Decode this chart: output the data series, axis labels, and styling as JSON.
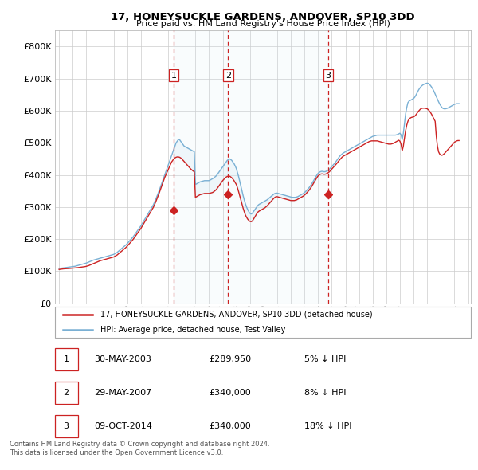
{
  "title": "17, HONEYSUCKLE GARDENS, ANDOVER, SP10 3DD",
  "subtitle": "Price paid vs. HM Land Registry's House Price Index (HPI)",
  "ylim": [
    0,
    850000
  ],
  "yticks": [
    0,
    100000,
    200000,
    300000,
    400000,
    500000,
    600000,
    700000,
    800000
  ],
  "legend_line1": "17, HONEYSUCKLE GARDENS, ANDOVER, SP10 3DD (detached house)",
  "legend_line2": "HPI: Average price, detached house, Test Valley",
  "line_color_red": "#cc2222",
  "line_color_blue": "#7ab0d4",
  "shade_color": "#d0e8f5",
  "vline_color": "#cc2222",
  "footer": "Contains HM Land Registry data © Crown copyright and database right 2024.\nThis data is licensed under the Open Government Licence v3.0.",
  "transactions": [
    {
      "num": 1,
      "date": "30-MAY-2003",
      "price": "£289,950",
      "pct": "5% ↓ HPI",
      "year": 2003.4,
      "price_val": 289950
    },
    {
      "num": 2,
      "date": "29-MAY-2007",
      "price": "£340,000",
      "pct": "8% ↓ HPI",
      "year": 2007.4,
      "price_val": 340000
    },
    {
      "num": 3,
      "date": "09-OCT-2014",
      "price": "£340,000",
      "pct": "18% ↓ HPI",
      "year": 2014.75,
      "price_val": 340000
    }
  ],
  "hpi_x": [
    1995.0,
    1995.083,
    1995.167,
    1995.25,
    1995.333,
    1995.417,
    1995.5,
    1995.583,
    1995.667,
    1995.75,
    1995.833,
    1995.917,
    1996.0,
    1996.083,
    1996.167,
    1996.25,
    1996.333,
    1996.417,
    1996.5,
    1996.583,
    1996.667,
    1996.75,
    1996.833,
    1996.917,
    1997.0,
    1997.083,
    1997.167,
    1997.25,
    1997.333,
    1997.417,
    1997.5,
    1997.583,
    1997.667,
    1997.75,
    1997.833,
    1997.917,
    1998.0,
    1998.083,
    1998.167,
    1998.25,
    1998.333,
    1998.417,
    1998.5,
    1998.583,
    1998.667,
    1998.75,
    1998.833,
    1998.917,
    1999.0,
    1999.083,
    1999.167,
    1999.25,
    1999.333,
    1999.417,
    1999.5,
    1999.583,
    1999.667,
    1999.75,
    1999.833,
    1999.917,
    2000.0,
    2000.083,
    2000.167,
    2000.25,
    2000.333,
    2000.417,
    2000.5,
    2000.583,
    2000.667,
    2000.75,
    2000.833,
    2000.917,
    2001.0,
    2001.083,
    2001.167,
    2001.25,
    2001.333,
    2001.417,
    2001.5,
    2001.583,
    2001.667,
    2001.75,
    2001.833,
    2001.917,
    2002.0,
    2002.083,
    2002.167,
    2002.25,
    2002.333,
    2002.417,
    2002.5,
    2002.583,
    2002.667,
    2002.75,
    2002.833,
    2002.917,
    2003.0,
    2003.083,
    2003.167,
    2003.25,
    2003.333,
    2003.417,
    2003.5,
    2003.583,
    2003.667,
    2003.75,
    2003.833,
    2003.917,
    2004.0,
    2004.083,
    2004.167,
    2004.25,
    2004.333,
    2004.417,
    2004.5,
    2004.583,
    2004.667,
    2004.75,
    2004.833,
    2004.917,
    2005.0,
    2005.083,
    2005.167,
    2005.25,
    2005.333,
    2005.417,
    2005.5,
    2005.583,
    2005.667,
    2005.75,
    2005.833,
    2005.917,
    2006.0,
    2006.083,
    2006.167,
    2006.25,
    2006.333,
    2006.417,
    2006.5,
    2006.583,
    2006.667,
    2006.75,
    2006.833,
    2006.917,
    2007.0,
    2007.083,
    2007.167,
    2007.25,
    2007.333,
    2007.417,
    2007.5,
    2007.583,
    2007.667,
    2007.75,
    2007.833,
    2007.917,
    2008.0,
    2008.083,
    2008.167,
    2008.25,
    2008.333,
    2008.417,
    2008.5,
    2008.583,
    2008.667,
    2008.75,
    2008.833,
    2008.917,
    2009.0,
    2009.083,
    2009.167,
    2009.25,
    2009.333,
    2009.417,
    2009.5,
    2009.583,
    2009.667,
    2009.75,
    2009.833,
    2009.917,
    2010.0,
    2010.083,
    2010.167,
    2010.25,
    2010.333,
    2010.417,
    2010.5,
    2010.583,
    2010.667,
    2010.75,
    2010.833,
    2010.917,
    2011.0,
    2011.083,
    2011.167,
    2011.25,
    2011.333,
    2011.417,
    2011.5,
    2011.583,
    2011.667,
    2011.75,
    2011.833,
    2011.917,
    2012.0,
    2012.083,
    2012.167,
    2012.25,
    2012.333,
    2012.417,
    2012.5,
    2012.583,
    2012.667,
    2012.75,
    2012.833,
    2012.917,
    2013.0,
    2013.083,
    2013.167,
    2013.25,
    2013.333,
    2013.417,
    2013.5,
    2013.583,
    2013.667,
    2013.75,
    2013.833,
    2013.917,
    2014.0,
    2014.083,
    2014.167,
    2014.25,
    2014.333,
    2014.417,
    2014.5,
    2014.583,
    2014.667,
    2014.75,
    2014.833,
    2014.917,
    2015.0,
    2015.083,
    2015.167,
    2015.25,
    2015.333,
    2015.417,
    2015.5,
    2015.583,
    2015.667,
    2015.75,
    2015.833,
    2015.917,
    2016.0,
    2016.083,
    2016.167,
    2016.25,
    2016.333,
    2016.417,
    2016.5,
    2016.583,
    2016.667,
    2016.75,
    2016.833,
    2016.917,
    2017.0,
    2017.083,
    2017.167,
    2017.25,
    2017.333,
    2017.417,
    2017.5,
    2017.583,
    2017.667,
    2017.75,
    2017.833,
    2017.917,
    2018.0,
    2018.083,
    2018.167,
    2018.25,
    2018.333,
    2018.417,
    2018.5,
    2018.583,
    2018.667,
    2018.75,
    2018.833,
    2018.917,
    2019.0,
    2019.083,
    2019.167,
    2019.25,
    2019.333,
    2019.417,
    2019.5,
    2019.583,
    2019.667,
    2019.75,
    2019.833,
    2019.917,
    2020.0,
    2020.083,
    2020.167,
    2020.25,
    2020.333,
    2020.417,
    2020.5,
    2020.583,
    2020.667,
    2020.75,
    2020.833,
    2020.917,
    2021.0,
    2021.083,
    2021.167,
    2021.25,
    2021.333,
    2021.417,
    2021.5,
    2021.583,
    2021.667,
    2021.75,
    2021.833,
    2021.917,
    2022.0,
    2022.083,
    2022.167,
    2022.25,
    2022.333,
    2022.417,
    2022.5,
    2022.583,
    2022.667,
    2022.75,
    2022.833,
    2022.917,
    2023.0,
    2023.083,
    2023.167,
    2023.25,
    2023.333,
    2023.417,
    2023.5,
    2023.583,
    2023.667,
    2023.75,
    2023.833,
    2023.917,
    2024.0,
    2024.083,
    2024.167,
    2024.25,
    2024.333
  ],
  "hpi_y": [
    108000,
    108500,
    109000,
    109500,
    110000,
    110500,
    111000,
    111500,
    112000,
    112500,
    113000,
    113500,
    114000,
    114500,
    115000,
    116000,
    117000,
    118000,
    119000,
    120000,
    121000,
    122000,
    123000,
    124000,
    125000,
    126500,
    128000,
    129500,
    131000,
    132500,
    134000,
    135000,
    136000,
    137000,
    138000,
    139000,
    140000,
    141000,
    142000,
    143000,
    144000,
    145000,
    146000,
    147000,
    148000,
    149000,
    150000,
    151000,
    152000,
    154000,
    156000,
    158000,
    161000,
    164000,
    167000,
    170000,
    173000,
    176000,
    179000,
    182000,
    186000,
    190000,
    194000,
    198000,
    202000,
    206000,
    211000,
    216000,
    221000,
    226000,
    231000,
    236000,
    241000,
    247000,
    253000,
    259000,
    265000,
    271000,
    277000,
    283000,
    289000,
    295000,
    301000,
    307000,
    315000,
    323000,
    332000,
    341000,
    350000,
    360000,
    370000,
    380000,
    390000,
    400000,
    410000,
    420000,
    430000,
    440000,
    450000,
    460000,
    470000,
    480000,
    490000,
    500000,
    505000,
    510000,
    510000,
    505000,
    500000,
    495000,
    490000,
    488000,
    486000,
    484000,
    482000,
    480000,
    478000,
    476000,
    474000,
    472000,
    370000,
    372000,
    374000,
    376000,
    378000,
    379000,
    380000,
    381000,
    382000,
    382000,
    382000,
    382000,
    382000,
    384000,
    386000,
    388000,
    390000,
    393000,
    396000,
    400000,
    405000,
    410000,
    415000,
    420000,
    425000,
    430000,
    435000,
    440000,
    445000,
    448000,
    450000,
    448000,
    445000,
    440000,
    435000,
    428000,
    420000,
    408000,
    395000,
    380000,
    365000,
    350000,
    335000,
    322000,
    310000,
    300000,
    292000,
    285000,
    280000,
    278000,
    280000,
    285000,
    290000,
    295000,
    300000,
    305000,
    308000,
    310000,
    312000,
    314000,
    316000,
    318000,
    320000,
    322000,
    325000,
    328000,
    331000,
    334000,
    337000,
    340000,
    342000,
    343000,
    343000,
    342000,
    341000,
    340000,
    339000,
    338000,
    337000,
    336000,
    335000,
    334000,
    333000,
    332000,
    331000,
    330000,
    330000,
    330000,
    330000,
    331000,
    332000,
    334000,
    336000,
    338000,
    340000,
    342000,
    345000,
    348000,
    352000,
    356000,
    360000,
    365000,
    370000,
    376000,
    382000,
    388000,
    394000,
    400000,
    405000,
    408000,
    410000,
    411000,
    411000,
    410000,
    410000,
    411000,
    413000,
    415000,
    418000,
    422000,
    426000,
    430000,
    434000,
    438000,
    443000,
    448000,
    453000,
    458000,
    462000,
    465000,
    468000,
    470000,
    472000,
    474000,
    476000,
    478000,
    480000,
    482000,
    484000,
    486000,
    488000,
    490000,
    492000,
    494000,
    496000,
    498000,
    500000,
    502000,
    504000,
    506000,
    508000,
    510000,
    512000,
    514000,
    516000,
    518000,
    520000,
    521000,
    522000,
    523000,
    524000,
    524000,
    524000,
    524000,
    524000,
    524000,
    524000,
    524000,
    524000,
    524000,
    524000,
    524000,
    524000,
    524000,
    524000,
    524000,
    524000,
    525000,
    526000,
    528000,
    530000,
    525000,
    510000,
    530000,
    560000,
    590000,
    610000,
    625000,
    630000,
    632000,
    634000,
    636000,
    638000,
    642000,
    648000,
    655000,
    662000,
    668000,
    673000,
    677000,
    680000,
    682000,
    684000,
    685000,
    686000,
    685000,
    682000,
    678000,
    673000,
    667000,
    660000,
    652000,
    644000,
    636000,
    628000,
    621000,
    615000,
    610000,
    607000,
    606000,
    606000,
    607000,
    608000,
    610000,
    612000,
    614000,
    616000,
    618000,
    620000,
    621000,
    622000,
    622000,
    622000
  ],
  "red_y": [
    105000,
    105500,
    106000,
    106500,
    107000,
    107200,
    107500,
    107800,
    108000,
    108200,
    108500,
    108800,
    109000,
    109300,
    109600,
    110000,
    110500,
    111000,
    111500,
    112000,
    112500,
    113000,
    113500,
    114000,
    115000,
    116000,
    117000,
    118500,
    120000,
    121500,
    123000,
    124500,
    126000,
    127500,
    129000,
    130500,
    132000,
    133000,
    134000,
    135000,
    136000,
    137000,
    138000,
    139000,
    140000,
    141000,
    142000,
    143000,
    144000,
    146000,
    148000,
    150000,
    153000,
    156000,
    159000,
    162000,
    165000,
    168000,
    171000,
    174000,
    178000,
    182000,
    186000,
    190000,
    194000,
    198000,
    203000,
    208000,
    213000,
    218000,
    223000,
    228000,
    233000,
    239000,
    245000,
    251000,
    257000,
    263000,
    269000,
    275000,
    281000,
    287000,
    293000,
    299000,
    307000,
    315000,
    324000,
    333000,
    342000,
    352000,
    362000,
    372000,
    382000,
    392000,
    400000,
    408000,
    416000,
    424000,
    432000,
    440000,
    445000,
    450000,
    453000,
    455000,
    456000,
    456000,
    455000,
    453000,
    450000,
    446000,
    442000,
    438000,
    434000,
    430000,
    426000,
    422000,
    418000,
    415000,
    412000,
    410000,
    330000,
    332000,
    334000,
    336000,
    338000,
    339000,
    340000,
    341000,
    342000,
    342000,
    342000,
    342000,
    342000,
    343000,
    344000,
    345000,
    347000,
    350000,
    353000,
    357000,
    362000,
    367000,
    372000,
    377000,
    382000,
    386000,
    390000,
    393000,
    395000,
    396000,
    396000,
    394000,
    391000,
    387000,
    382000,
    376000,
    370000,
    360000,
    348000,
    335000,
    321000,
    308000,
    296000,
    285000,
    275000,
    268000,
    262000,
    258000,
    255000,
    254000,
    256000,
    261000,
    267000,
    273000,
    279000,
    284000,
    287000,
    289000,
    291000,
    293000,
    295000,
    297000,
    300000,
    303000,
    307000,
    311000,
    315000,
    319000,
    323000,
    327000,
    330000,
    332000,
    332000,
    331000,
    330000,
    329000,
    328000,
    327000,
    326000,
    325000,
    324000,
    323000,
    322000,
    321000,
    320000,
    320000,
    320000,
    320000,
    321000,
    322000,
    324000,
    326000,
    328000,
    330000,
    332000,
    334000,
    337000,
    340000,
    344000,
    348000,
    352000,
    357000,
    362000,
    368000,
    374000,
    380000,
    386000,
    392000,
    397000,
    400000,
    402000,
    403000,
    403000,
    402000,
    402000,
    403000,
    405000,
    407000,
    410000,
    414000,
    418000,
    422000,
    426000,
    430000,
    434000,
    438000,
    443000,
    447000,
    451000,
    455000,
    458000,
    460000,
    462000,
    464000,
    466000,
    468000,
    470000,
    472000,
    474000,
    476000,
    478000,
    480000,
    482000,
    484000,
    486000,
    488000,
    490000,
    492000,
    494000,
    496000,
    498000,
    500000,
    502000,
    504000,
    505000,
    506000,
    506000,
    506000,
    506000,
    506000,
    506000,
    505000,
    504000,
    503000,
    502000,
    501000,
    500000,
    499000,
    498000,
    497000,
    496000,
    496000,
    496000,
    497000,
    498000,
    500000,
    502000,
    504000,
    506000,
    508000,
    505000,
    495000,
    475000,
    490000,
    515000,
    538000,
    555000,
    567000,
    574000,
    577000,
    579000,
    580000,
    581000,
    583000,
    587000,
    592000,
    597000,
    601000,
    605000,
    607000,
    608000,
    608000,
    608000,
    607000,
    606000,
    603000,
    599000,
    594000,
    588000,
    581000,
    574000,
    567000,
    520000,
    490000,
    472000,
    465000,
    462000,
    461000,
    463000,
    466000,
    470000,
    474000,
    478000,
    482000,
    486000,
    490000,
    494000,
    498000,
    502000,
    504000,
    506000,
    507000,
    507000
  ]
}
